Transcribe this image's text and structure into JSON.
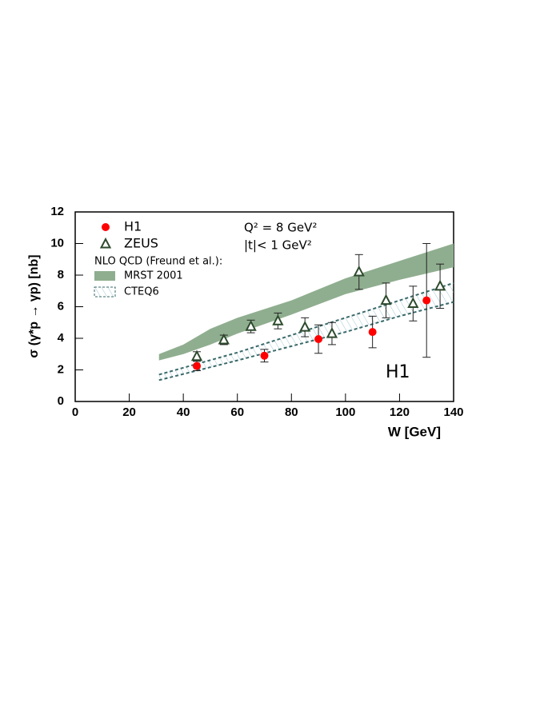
{
  "chart_data": {
    "type": "scatter",
    "x_label": "W [GeV]",
    "y_label": "σ (γ*p → γp)  [nb]",
    "xlim": [
      0,
      140
    ],
    "ylim": [
      0,
      12
    ],
    "xticks": [
      0,
      20,
      40,
      60,
      80,
      100,
      120,
      140
    ],
    "yticks": [
      0,
      2,
      4,
      6,
      8,
      10,
      12
    ],
    "annotations": [
      "Q² = 8 GeV²",
      "|t|< 1 GeV²",
      "H1"
    ],
    "legend_title": "NLO QCD (Freund et al.):",
    "series": [
      {
        "name": "H1",
        "color": "#ff0000",
        "marker": "circle",
        "x": [
          45,
          70,
          90,
          110,
          130
        ],
        "values": [
          2.25,
          2.9,
          3.95,
          4.4,
          6.4
        ],
        "errors": [
          0.3,
          0.4,
          0.9,
          1.0,
          3.6
        ]
      },
      {
        "name": "ZEUS",
        "color": "#2d4a2d",
        "marker": "triangle",
        "x": [
          45,
          55,
          65,
          75,
          85,
          95,
          105,
          115,
          125,
          135
        ],
        "values": [
          2.85,
          3.9,
          4.75,
          5.1,
          4.7,
          4.3,
          8.2,
          6.4,
          6.2,
          7.3
        ],
        "errors": [
          0.3,
          0.3,
          0.4,
          0.5,
          0.6,
          0.7,
          1.1,
          1.1,
          1.1,
          1.4
        ]
      }
    ],
    "bands": [
      {
        "name": "MRST 2001",
        "color": "#8fae8f",
        "style": "filled",
        "x": [
          31,
          40,
          50,
          60,
          80,
          100,
          120,
          140
        ],
        "lower": [
          2.6,
          3.0,
          3.6,
          4.3,
          5.5,
          6.8,
          7.7,
          8.5
        ],
        "upper": [
          3.0,
          3.6,
          4.6,
          5.3,
          6.4,
          7.8,
          8.9,
          10.0
        ]
      },
      {
        "name": "CTEQ6",
        "color": "#3a6a6a",
        "style": "hatched",
        "x": [
          31,
          60,
          80,
          100,
          120,
          140
        ],
        "lower": [
          1.35,
          2.6,
          3.5,
          4.4,
          5.4,
          6.3
        ],
        "upper": [
          1.7,
          3.1,
          4.2,
          5.3,
          6.4,
          7.5
        ]
      }
    ]
  }
}
